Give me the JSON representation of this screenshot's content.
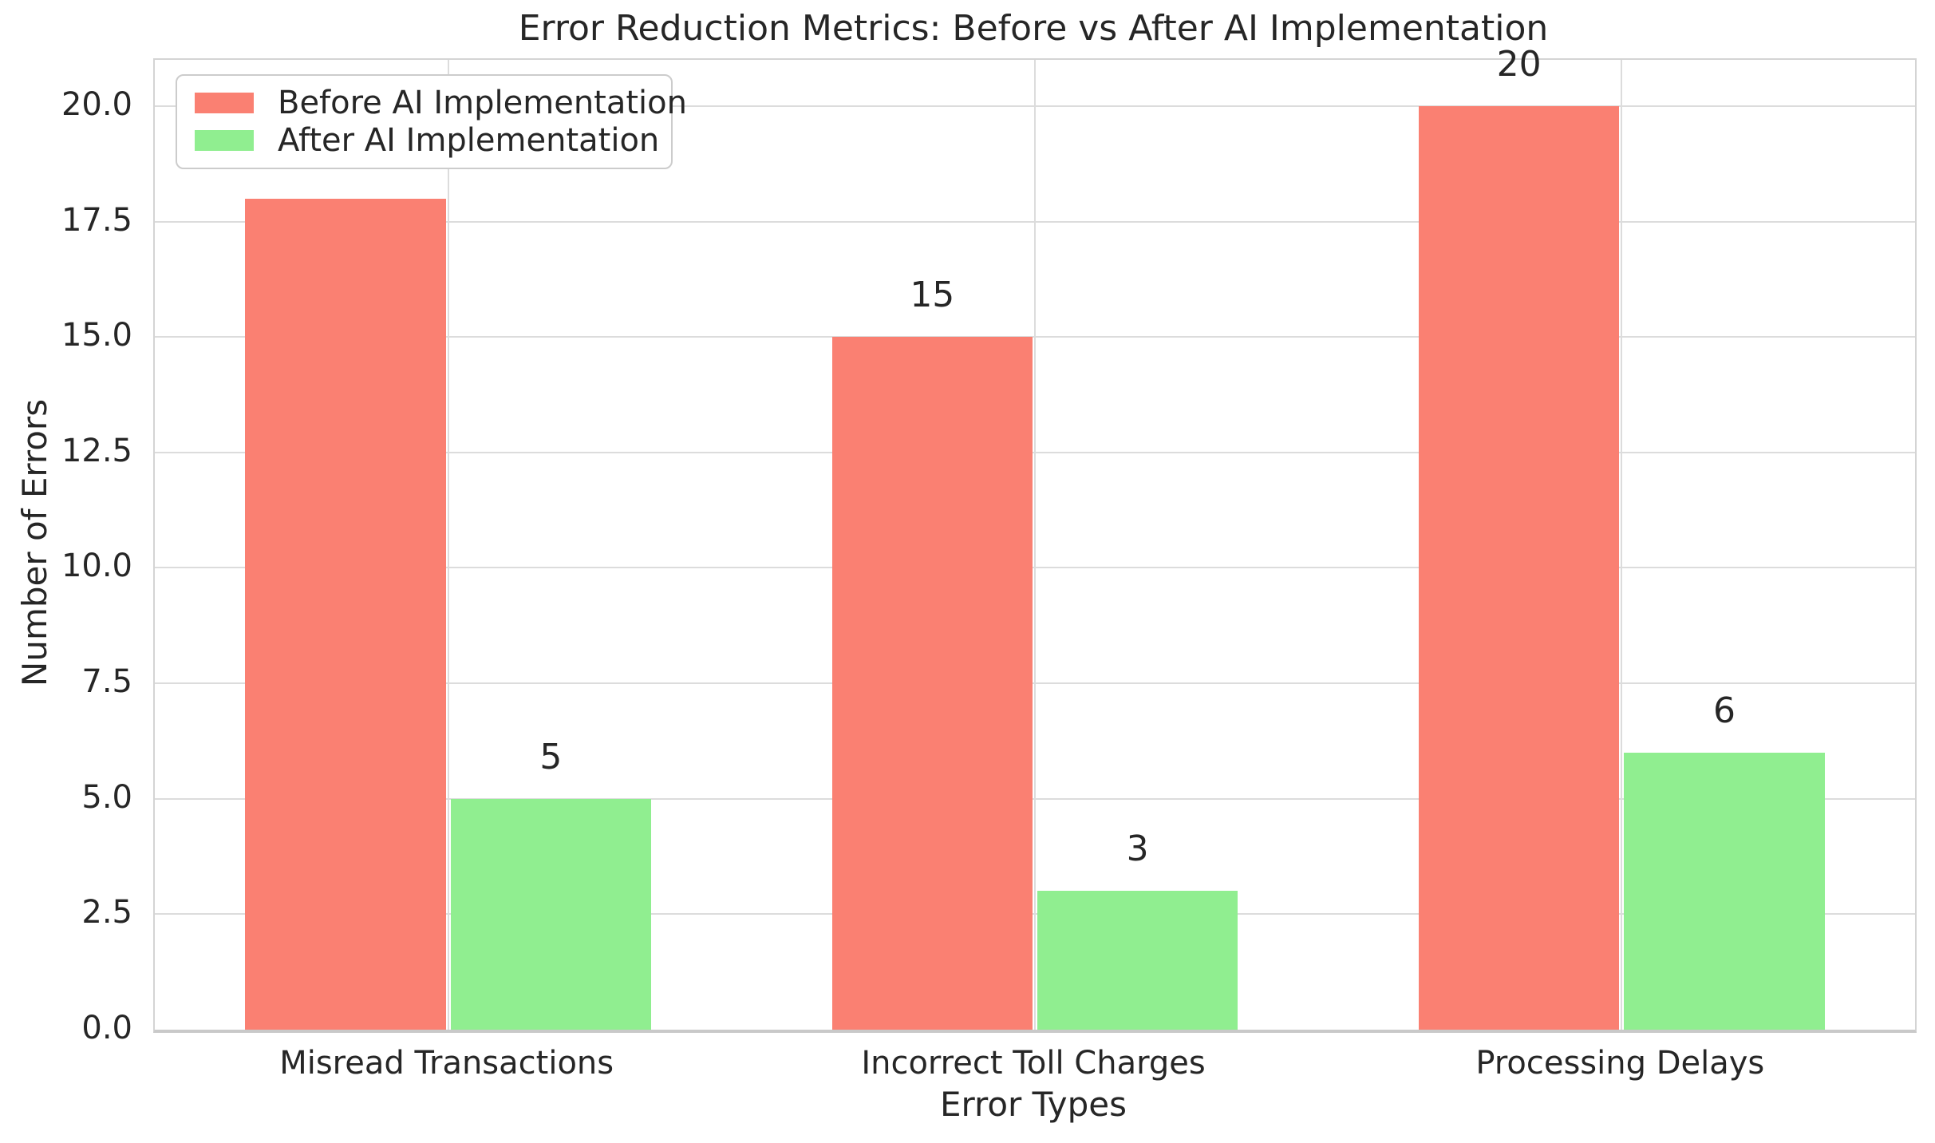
{
  "figure": {
    "background": "#ffffff",
    "text_color": "#262626",
    "grid_color": "#dcdcdc",
    "spine_color": "#cccccc"
  },
  "chart_data": {
    "type": "bar",
    "title": "Error Reduction Metrics: Before vs After AI Implementation",
    "xlabel": "Error Types",
    "ylabel": "Number of Errors",
    "categories": [
      "Misread Transactions",
      "Incorrect Toll Charges",
      "Processing Delays"
    ],
    "series": [
      {
        "name": "Before AI Implementation",
        "color": "#FA8072",
        "values": [
          18,
          15,
          20
        ]
      },
      {
        "name": "After AI Implementation",
        "color": "#90EE90",
        "values": [
          5,
          3,
          6
        ]
      }
    ],
    "bar_value_labels": [
      [
        "18",
        "15",
        "20"
      ],
      [
        "5",
        "3",
        "6"
      ]
    ],
    "ylim": [
      0,
      21
    ],
    "yticks": [
      0,
      2.5,
      5,
      7.5,
      10,
      12.5,
      15,
      17.5,
      20
    ],
    "ytick_labels": [
      "0.0",
      "2.5",
      "5.0",
      "7.5",
      "10.0",
      "12.5",
      "15.0",
      "17.5",
      "20.0"
    ],
    "bar_width": 0.35,
    "grid": true,
    "legend_position": "upper left"
  }
}
